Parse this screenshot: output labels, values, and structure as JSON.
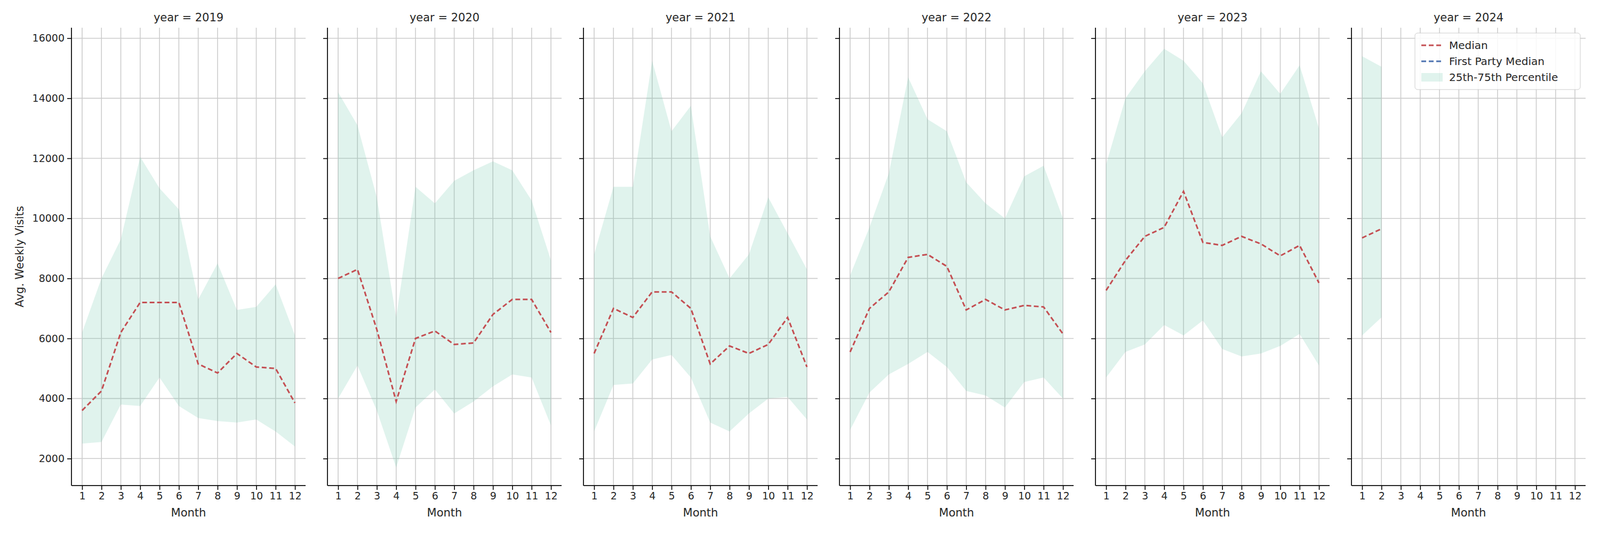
{
  "chart_data": [
    {
      "type": "line",
      "title": "year = 2019",
      "x_label": "Month",
      "y_label": "Avg. Weekly Visits",
      "x": [
        1,
        2,
        3,
        4,
        5,
        6,
        7,
        8,
        9,
        10,
        11,
        12
      ],
      "xlim": [
        0.45,
        12.55
      ],
      "xticks": [
        1,
        2,
        3,
        4,
        5,
        6,
        7,
        8,
        9,
        10,
        11,
        12
      ],
      "ylim": [
        1100,
        16350
      ],
      "yticks": [
        2000,
        4000,
        6000,
        8000,
        10000,
        12000,
        14000,
        16000
      ],
      "grid": true,
      "series": [
        {
          "color": "#c44e52",
          "line_style": "dashed",
          "values": [
            3600,
            4250,
            6200,
            7200,
            7200,
            7200,
            5150,
            4850,
            5500,
            5050,
            5000,
            3850
          ]
        }
      ],
      "band": {
        "color": "#66c2a5",
        "lower": [
          2500,
          2550,
          3800,
          3750,
          4700,
          3750,
          3350,
          3250,
          3200,
          3300,
          2900,
          2400
        ],
        "upper": [
          6200,
          8000,
          9300,
          12050,
          11000,
          10300,
          7300,
          8500,
          6950,
          7050,
          7800,
          6100
        ]
      }
    },
    {
      "type": "line",
      "title": "year = 2020",
      "x_label": "Month",
      "tick_labels": "x",
      "x": [
        1,
        2,
        3,
        4,
        5,
        6,
        7,
        8,
        9,
        10,
        11,
        12
      ],
      "xlim": [
        0.45,
        12.55
      ],
      "xticks": [
        1,
        2,
        3,
        4,
        5,
        6,
        7,
        8,
        9,
        10,
        11,
        12
      ],
      "ylim": [
        1100,
        16350
      ],
      "yticks": [
        2000,
        4000,
        6000,
        8000,
        10000,
        12000,
        14000,
        16000
      ],
      "grid": true,
      "series": [
        {
          "color": "#c44e52",
          "line_style": "dashed",
          "values": [
            8000,
            8300,
            6300,
            3900,
            6000,
            6250,
            5800,
            5850,
            6800,
            7300,
            7300,
            6200
          ]
        }
      ],
      "band": {
        "color": "#66c2a5",
        "lower": [
          4000,
          5100,
          3600,
          1700,
          3700,
          4300,
          3500,
          3900,
          4400,
          4800,
          4700,
          3100
        ],
        "upper": [
          14200,
          13100,
          10700,
          6700,
          11050,
          10500,
          11250,
          11600,
          11900,
          11600,
          10600,
          8600
        ]
      }
    },
    {
      "type": "line",
      "title": "year = 2021",
      "x_label": "Month",
      "tick_labels": "x",
      "x": [
        1,
        2,
        3,
        4,
        5,
        6,
        7,
        8,
        9,
        10,
        11,
        12
      ],
      "xlim": [
        0.45,
        12.55
      ],
      "xticks": [
        1,
        2,
        3,
        4,
        5,
        6,
        7,
        8,
        9,
        10,
        11,
        12
      ],
      "ylim": [
        1100,
        16350
      ],
      "yticks": [
        2000,
        4000,
        6000,
        8000,
        10000,
        12000,
        14000,
        16000
      ],
      "grid": true,
      "series": [
        {
          "color": "#c44e52",
          "line_style": "dashed",
          "values": [
            5500,
            7000,
            6700,
            7550,
            7550,
            7000,
            5150,
            5750,
            5500,
            5800,
            6700,
            5050
          ]
        }
      ],
      "band": {
        "color": "#66c2a5",
        "lower": [
          2900,
          4450,
          4500,
          5300,
          5450,
          4700,
          3200,
          2900,
          3500,
          4000,
          4050,
          3300
        ],
        "upper": [
          8800,
          11050,
          11050,
          15250,
          12900,
          13750,
          9400,
          8000,
          8800,
          10700,
          9500,
          8300
        ]
      }
    },
    {
      "type": "line",
      "title": "year = 2022",
      "x_label": "Month",
      "tick_labels": "x",
      "x": [
        1,
        2,
        3,
        4,
        5,
        6,
        7,
        8,
        9,
        10,
        11,
        12
      ],
      "xlim": [
        0.45,
        12.55
      ],
      "xticks": [
        1,
        2,
        3,
        4,
        5,
        6,
        7,
        8,
        9,
        10,
        11,
        12
      ],
      "ylim": [
        1100,
        16350
      ],
      "yticks": [
        2000,
        4000,
        6000,
        8000,
        10000,
        12000,
        14000,
        16000
      ],
      "grid": true,
      "series": [
        {
          "color": "#c44e52",
          "line_style": "dashed",
          "values": [
            5550,
            7000,
            7550,
            8700,
            8800,
            8400,
            6950,
            7300,
            6950,
            7100,
            7050,
            6150
          ]
        }
      ],
      "band": {
        "color": "#66c2a5",
        "lower": [
          2950,
          4200,
          4800,
          5150,
          5550,
          5050,
          4250,
          4100,
          3700,
          4550,
          4700,
          4000
        ],
        "upper": [
          8100,
          9700,
          11500,
          14700,
          13300,
          12900,
          11200,
          10500,
          10000,
          11400,
          11750,
          10000
        ]
      }
    },
    {
      "type": "line",
      "title": "year = 2023",
      "x_label": "Month",
      "tick_labels": "x",
      "x": [
        1,
        2,
        3,
        4,
        5,
        6,
        7,
        8,
        9,
        10,
        11,
        12
      ],
      "xlim": [
        0.45,
        12.55
      ],
      "xticks": [
        1,
        2,
        3,
        4,
        5,
        6,
        7,
        8,
        9,
        10,
        11,
        12
      ],
      "ylim": [
        1100,
        16350
      ],
      "yticks": [
        2000,
        4000,
        6000,
        8000,
        10000,
        12000,
        14000,
        16000
      ],
      "grid": true,
      "series": [
        {
          "color": "#c44e52",
          "line_style": "dashed",
          "values": [
            7600,
            8600,
            9400,
            9700,
            10900,
            9200,
            9100,
            9400,
            9150,
            8750,
            9100,
            7850
          ]
        }
      ],
      "band": {
        "color": "#66c2a5",
        "lower": [
          4700,
          5550,
          5800,
          6450,
          6100,
          6600,
          5650,
          5400,
          5500,
          5750,
          6150,
          5100
        ],
        "upper": [
          11800,
          14000,
          14900,
          15650,
          15250,
          14500,
          12700,
          13500,
          14900,
          14150,
          15100,
          13000
        ]
      }
    },
    {
      "type": "line",
      "title": "year = 2024",
      "x_label": "Month",
      "tick_labels": "x",
      "legend": "upper right",
      "x": [
        1,
        2,
        3,
        4,
        5,
        6,
        7,
        8,
        9,
        10,
        11,
        12
      ],
      "xlim": [
        0.45,
        12.55
      ],
      "xticks": [
        1,
        2,
        3,
        4,
        5,
        6,
        7,
        8,
        9,
        10,
        11,
        12
      ],
      "ylim": [
        1100,
        16350
      ],
      "yticks": [
        2000,
        4000,
        6000,
        8000,
        10000,
        12000,
        14000,
        16000
      ],
      "grid": true,
      "series": [
        {
          "name": "Median",
          "color": "#c44e52",
          "line_style": "dashed",
          "values": [
            9350,
            9650,
            null,
            null,
            null,
            null,
            null,
            null,
            null,
            null,
            null,
            null
          ]
        },
        {
          "name": "First Party Median",
          "color": "#4c72b0",
          "line_style": "dashed",
          "values": [
            null,
            null,
            null,
            null,
            null,
            null,
            null,
            null,
            null,
            null,
            null,
            null
          ]
        }
      ],
      "band": {
        "name": "25th-75th Percentile",
        "color": "#66c2a5",
        "lower": [
          6100,
          6700,
          null,
          null,
          null,
          null,
          null,
          null,
          null,
          null,
          null,
          null
        ],
        "upper": [
          15400,
          15050,
          null,
          null,
          null,
          null,
          null,
          null,
          null,
          null,
          null,
          null
        ]
      }
    }
  ]
}
